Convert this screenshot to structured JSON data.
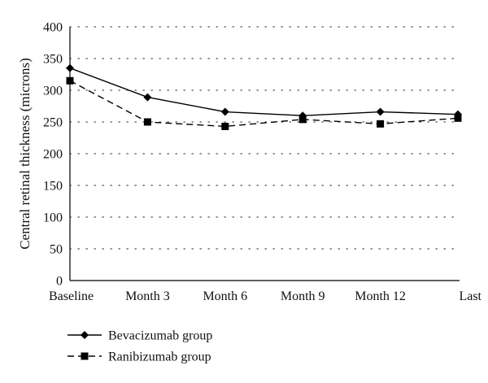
{
  "chart_data": {
    "type": "line",
    "categories": [
      "Baseline",
      "Month 3",
      "Month 6",
      "Month 9",
      "Month 12",
      "Last"
    ],
    "series": [
      {
        "name": "Bevacizumab group",
        "values": [
          335,
          289,
          266,
          260,
          266,
          262
        ],
        "color": "#000000",
        "line_style": "solid",
        "marker": "diamond"
      },
      {
        "name": "Ranibizumab group",
        "values": [
          315,
          250,
          243,
          254,
          247,
          256
        ],
        "color": "#000000",
        "line_style": "dashed",
        "marker": "square"
      }
    ],
    "ylabel": "Central retinal thickness (microns)",
    "ylim": [
      0,
      400
    ],
    "yticks": [
      0,
      50,
      100,
      150,
      200,
      250,
      300,
      350,
      400
    ],
    "grid": true,
    "legend_position": "bottom-left"
  }
}
